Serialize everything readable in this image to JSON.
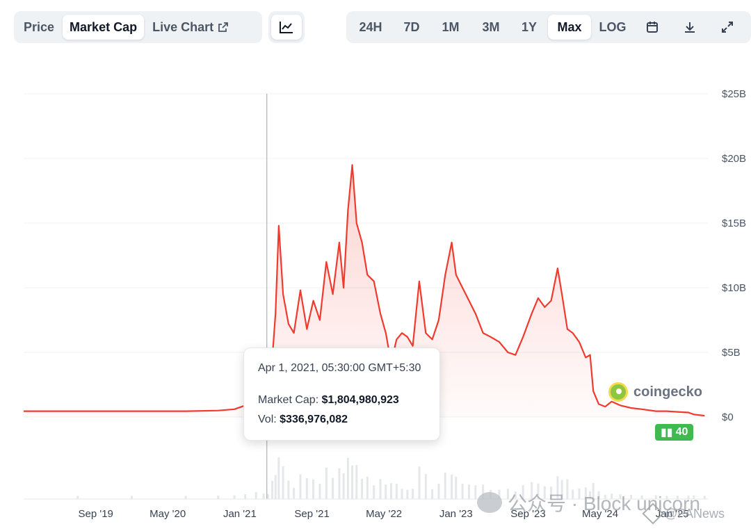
{
  "toolbar": {
    "left_tabs": [
      {
        "label": "Price",
        "active": false
      },
      {
        "label": "Market Cap",
        "active": true
      },
      {
        "label": "Live Chart",
        "active": false,
        "icon": "external-link-icon"
      }
    ],
    "chart_type_icon": "line-chart-icon",
    "ranges": [
      {
        "label": "24H",
        "active": false
      },
      {
        "label": "7D",
        "active": false
      },
      {
        "label": "1M",
        "active": false
      },
      {
        "label": "3M",
        "active": false
      },
      {
        "label": "1Y",
        "active": false
      },
      {
        "label": "Max",
        "active": true
      },
      {
        "label": "LOG",
        "active": false
      }
    ],
    "tool_icons": [
      "calendar-icon",
      "download-icon",
      "expand-icon"
    ]
  },
  "tooltip": {
    "date": "Apr 1, 2021, 05:30:00 GMT+5:30",
    "market_cap_label": "Market Cap:",
    "market_cap_value": "$1,804,980,923",
    "vol_label": "Vol:",
    "vol_value": "$336,976,082"
  },
  "brand": {
    "name": "coingecko",
    "badge": "40"
  },
  "watermark": {
    "text": "公众号 · Block unicorn",
    "secondary": "@PANews"
  },
  "colors": {
    "line": "#f03a2e",
    "area_top": "rgba(240,58,46,0.22)",
    "volume": "#e5e7eb",
    "grid": "#eef0f3"
  },
  "chart_data": {
    "type": "area",
    "series": [
      {
        "name": "Market Cap",
        "unit": "USD billions"
      }
    ],
    "yaxis": {
      "ticks": [
        0,
        5,
        10,
        15,
        20,
        25
      ],
      "tick_labels": [
        "$0",
        "$5B",
        "$10B",
        "$15B",
        "$20B",
        "$25B"
      ],
      "range": [
        0,
        25
      ],
      "position": "right"
    },
    "xaxis": {
      "tick_labels": [
        "Sep '19",
        "May '20",
        "Jan '21",
        "Sep '21",
        "May '22",
        "Jan '23",
        "Sep '23",
        "May '24",
        "Jan '25"
      ],
      "tick_t": [
        0.667,
        1.333,
        2.0,
        2.667,
        3.333,
        4.0,
        4.667,
        5.333,
        6.0
      ],
      "range_t": [
        0,
        6.33
      ],
      "t_note": "years since Jan 2019"
    },
    "grid": true,
    "crosshair_t": 2.25,
    "hover_point": {
      "t": 2.25,
      "y": 1.8
    },
    "points": [
      [
        0.0,
        0.45
      ],
      [
        0.5,
        0.45
      ],
      [
        1.0,
        0.45
      ],
      [
        1.5,
        0.45
      ],
      [
        1.8,
        0.5
      ],
      [
        1.95,
        0.6
      ],
      [
        2.05,
        0.9
      ],
      [
        2.15,
        1.6
      ],
      [
        2.22,
        1.9
      ],
      [
        2.26,
        1.7
      ],
      [
        2.3,
        4.5
      ],
      [
        2.33,
        8.0
      ],
      [
        2.36,
        14.8
      ],
      [
        2.4,
        9.5
      ],
      [
        2.45,
        7.2
      ],
      [
        2.5,
        6.5
      ],
      [
        2.56,
        9.8
      ],
      [
        2.62,
        6.8
      ],
      [
        2.68,
        9.0
      ],
      [
        2.74,
        7.5
      ],
      [
        2.8,
        12.0
      ],
      [
        2.86,
        9.5
      ],
      [
        2.92,
        13.5
      ],
      [
        2.96,
        10.0
      ],
      [
        3.0,
        16.0
      ],
      [
        3.04,
        19.5
      ],
      [
        3.08,
        15.0
      ],
      [
        3.13,
        13.5
      ],
      [
        3.18,
        11.0
      ],
      [
        3.24,
        10.5
      ],
      [
        3.3,
        8.0
      ],
      [
        3.35,
        6.5
      ],
      [
        3.4,
        4.2
      ],
      [
        3.45,
        6.0
      ],
      [
        3.5,
        6.5
      ],
      [
        3.55,
        6.2
      ],
      [
        3.6,
        5.5
      ],
      [
        3.66,
        10.5
      ],
      [
        3.72,
        6.5
      ],
      [
        3.78,
        6.0
      ],
      [
        3.84,
        7.5
      ],
      [
        3.9,
        11.0
      ],
      [
        3.96,
        13.5
      ],
      [
        4.0,
        11.0
      ],
      [
        4.06,
        10.0
      ],
      [
        4.12,
        9.0
      ],
      [
        4.18,
        8.0
      ],
      [
        4.25,
        6.5
      ],
      [
        4.32,
        6.2
      ],
      [
        4.4,
        5.8
      ],
      [
        4.48,
        5.0
      ],
      [
        4.55,
        4.8
      ],
      [
        4.62,
        6.2
      ],
      [
        4.7,
        8.0
      ],
      [
        4.76,
        9.2
      ],
      [
        4.82,
        8.5
      ],
      [
        4.88,
        9.0
      ],
      [
        4.94,
        11.5
      ],
      [
        4.98,
        9.5
      ],
      [
        5.03,
        6.8
      ],
      [
        5.08,
        6.5
      ],
      [
        5.14,
        5.8
      ],
      [
        5.2,
        4.6
      ],
      [
        5.24,
        4.8
      ],
      [
        5.27,
        2.0
      ],
      [
        5.32,
        1.0
      ],
      [
        5.38,
        0.8
      ],
      [
        5.44,
        1.2
      ],
      [
        5.52,
        0.9
      ],
      [
        5.62,
        0.7
      ],
      [
        5.72,
        0.6
      ],
      [
        5.85,
        0.45
      ],
      [
        5.95,
        0.45
      ],
      [
        6.05,
        0.4
      ],
      [
        6.15,
        0.35
      ],
      [
        6.2,
        0.2
      ],
      [
        6.3,
        0.1
      ]
    ]
  }
}
